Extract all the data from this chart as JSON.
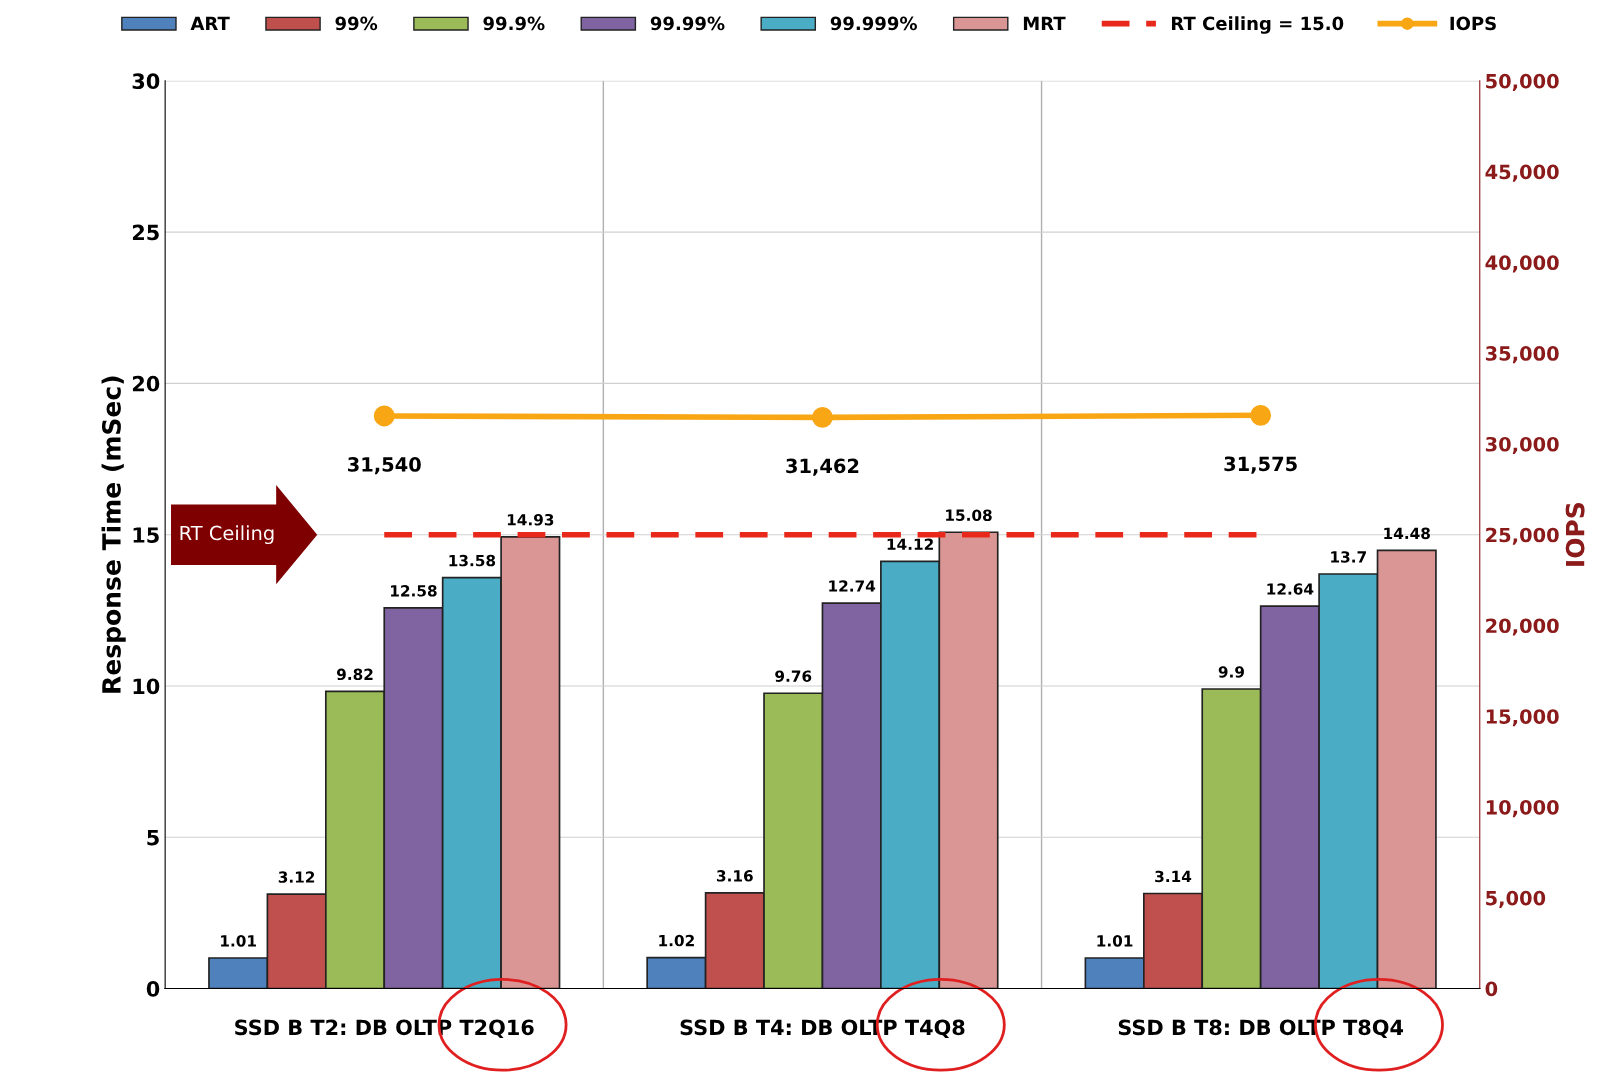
{
  "chart_data": {
    "type": "bar",
    "categories": [
      "SSD B T2: DB OLTP T2Q16",
      "SSD B T4: DB OLTP T4Q8",
      "SSD B T8: DB OLTP T8Q4"
    ],
    "ylabel": "Response Time (mSec)",
    "y2label": "IOPS",
    "ylim": [
      0,
      30
    ],
    "yticks": [
      0,
      5,
      10,
      15,
      20,
      25,
      30
    ],
    "y2lim": [
      0,
      50000
    ],
    "y2ticks": [
      {
        "value": 0,
        "label": "0"
      },
      {
        "value": 5000,
        "label": "5,000"
      },
      {
        "value": 10000,
        "label": "10,000"
      },
      {
        "value": 15000,
        "label": "15,000"
      },
      {
        "value": 20000,
        "label": "20,000"
      },
      {
        "value": 25000,
        "label": "25,000"
      },
      {
        "value": 30000,
        "label": "30,000"
      },
      {
        "value": 35000,
        "label": "35,000"
      },
      {
        "value": 40000,
        "label": "40,000"
      },
      {
        "value": 45000,
        "label": "45,000"
      },
      {
        "value": 50000,
        "label": "50,000"
      }
    ],
    "grid": true,
    "legend": "top",
    "annotations": [
      "RT Ceiling"
    ],
    "series": [
      {
        "name": "ART",
        "color": "#4f81bd",
        "values": [
          1.01,
          1.02,
          1.01
        ],
        "value_labels": [
          "1.01",
          "1.02",
          "1.01"
        ]
      },
      {
        "name": "99%",
        "color": "#c0504d",
        "values": [
          3.12,
          3.16,
          3.14
        ],
        "value_labels": [
          "3.12",
          "3.16",
          "3.14"
        ]
      },
      {
        "name": "99.9%",
        "color": "#9bbb59",
        "values": [
          9.82,
          9.76,
          9.9
        ],
        "value_labels": [
          "9.82",
          "9.76",
          "9.9"
        ]
      },
      {
        "name": "99.99%",
        "color": "#8064a2",
        "values": [
          12.58,
          12.74,
          12.64
        ],
        "value_labels": [
          "12.58",
          "12.74",
          "12.64"
        ]
      },
      {
        "name": "99.999%",
        "color": "#4bacc6",
        "values": [
          13.58,
          14.12,
          13.7
        ],
        "value_labels": [
          "13.58",
          "14.12",
          "13.7"
        ]
      },
      {
        "name": "MRT",
        "color": "#d99694",
        "values": [
          14.93,
          15.08,
          14.48
        ],
        "value_labels": [
          "14.93",
          "15.08",
          "14.48"
        ]
      },
      {
        "name": "RT Ceiling = 15.0",
        "type": "line",
        "color": "#e8281b",
        "line_style": "dashed",
        "marker": "none",
        "values": [
          15.0,
          15.0,
          15.0
        ]
      },
      {
        "name": "IOPS",
        "type": "line",
        "axis": "y2",
        "color": "#f8a614",
        "marker": "circle",
        "line_style": "solid",
        "values": [
          31540,
          31462,
          31575
        ],
        "value_labels": [
          "31,540",
          "31,462",
          "31,575"
        ]
      }
    ]
  }
}
